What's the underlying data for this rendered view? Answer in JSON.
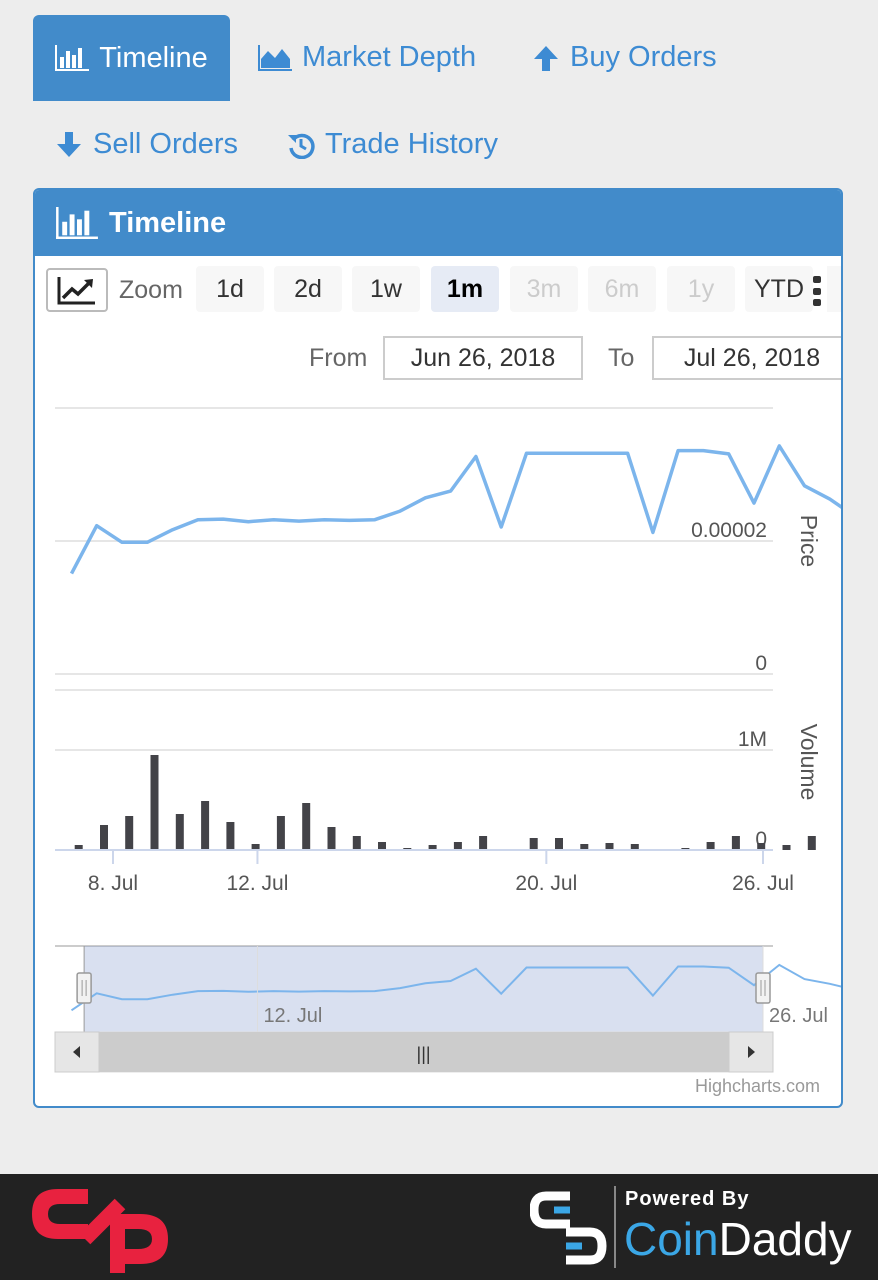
{
  "tabs": [
    {
      "label": "Timeline",
      "icon": "bar-chart-icon",
      "active": true
    },
    {
      "label": "Market Depth",
      "icon": "area-chart-icon",
      "active": false
    },
    {
      "label": "Buy Orders",
      "icon": "arrow-up-icon",
      "active": false
    },
    {
      "label": "Sell Orders",
      "icon": "arrow-down-icon",
      "active": false
    },
    {
      "label": "Trade History",
      "icon": "history-icon",
      "active": false
    }
  ],
  "panel": {
    "title": "Timeline"
  },
  "range_selector": {
    "zoom_label": "Zoom",
    "buttons": [
      {
        "label": "1d",
        "state": "normal"
      },
      {
        "label": "2d",
        "state": "normal"
      },
      {
        "label": "1w",
        "state": "normal"
      },
      {
        "label": "1m",
        "state": "selected"
      },
      {
        "label": "3m",
        "state": "disabled"
      },
      {
        "label": "6m",
        "state": "disabled"
      },
      {
        "label": "1y",
        "state": "disabled"
      },
      {
        "label": "YTD",
        "state": "normal"
      }
    ],
    "from_label": "From",
    "from_value": "Jun 26, 2018",
    "to_label": "To",
    "to_value": "Jul 26, 2018"
  },
  "chart_data": {
    "type": "line",
    "x_ticks": [
      {
        "label": "8. Jul",
        "day": 8
      },
      {
        "label": "12. Jul",
        "day": 12
      },
      {
        "label": "20. Jul",
        "day": 20
      },
      {
        "label": "26. Jul",
        "day": 26
      }
    ],
    "price": {
      "axis_title": "Price",
      "ticks": [
        {
          "label": "0",
          "value": 0
        },
        {
          "label": "0.00002",
          "value": 2e-05
        }
      ],
      "ylim": [
        0,
        4e-05
      ],
      "points": [
        [
          6.85,
          1.51e-05
        ],
        [
          7.55,
          2.23e-05
        ],
        [
          8.25,
          1.98e-05
        ],
        [
          8.95,
          1.98e-05
        ],
        [
          9.65,
          2.17e-05
        ],
        [
          10.35,
          2.32e-05
        ],
        [
          11.05,
          2.33e-05
        ],
        [
          11.75,
          2.29e-05
        ],
        [
          12.45,
          2.32e-05
        ],
        [
          13.15,
          2.3e-05
        ],
        [
          13.85,
          2.32e-05
        ],
        [
          14.55,
          2.31e-05
        ],
        [
          15.25,
          2.32e-05
        ],
        [
          15.95,
          2.45e-05
        ],
        [
          16.65,
          2.65e-05
        ],
        [
          17.35,
          2.75e-05
        ],
        [
          18.05,
          3.27e-05
        ],
        [
          18.75,
          2.21e-05
        ],
        [
          19.45,
          3.32e-05
        ],
        [
          20.15,
          3.32e-05
        ],
        [
          20.85,
          3.32e-05
        ],
        [
          21.55,
          3.32e-05
        ],
        [
          22.25,
          3.32e-05
        ],
        [
          22.95,
          2.13e-05
        ],
        [
          23.65,
          3.36e-05
        ],
        [
          24.35,
          3.36e-05
        ],
        [
          25.05,
          3.31e-05
        ],
        [
          25.75,
          2.57e-05
        ],
        [
          26.45,
          3.43e-05
        ],
        [
          27.15,
          2.83e-05
        ],
        [
          27.85,
          2.63e-05
        ],
        [
          28.55,
          2.37e-05
        ],
        [
          29.25,
          3.29e-05
        ],
        [
          29.95,
          2.23e-05
        ],
        [
          30.65,
          2.41e-05
        ]
      ]
    },
    "volume": {
      "axis_title": "Volume",
      "ticks": [
        {
          "label": "0",
          "value": 0
        },
        {
          "label": "1M",
          "value": 1000000
        }
      ],
      "ylim": [
        0,
        1600000
      ],
      "bars": [
        [
          7.05,
          50000
        ],
        [
          7.75,
          250000
        ],
        [
          8.45,
          340000
        ],
        [
          9.15,
          950000
        ],
        [
          9.85,
          360000
        ],
        [
          10.55,
          490000
        ],
        [
          11.25,
          280000
        ],
        [
          11.95,
          60000
        ],
        [
          12.65,
          340000
        ],
        [
          13.35,
          470000
        ],
        [
          14.05,
          230000
        ],
        [
          14.75,
          140000
        ],
        [
          15.45,
          80000
        ],
        [
          16.15,
          20000
        ],
        [
          16.85,
          50000
        ],
        [
          17.55,
          80000
        ],
        [
          18.25,
          140000
        ],
        [
          18.95,
          10000
        ],
        [
          19.65,
          120000
        ],
        [
          20.35,
          120000
        ],
        [
          21.05,
          60000
        ],
        [
          21.75,
          70000
        ],
        [
          22.45,
          60000
        ],
        [
          23.15,
          10000
        ],
        [
          23.85,
          20000
        ],
        [
          24.55,
          80000
        ],
        [
          25.25,
          140000
        ],
        [
          25.95,
          70000
        ],
        [
          26.65,
          50000
        ],
        [
          27.35,
          140000
        ]
      ]
    }
  },
  "navigator": {
    "ticks": [
      {
        "label": "12. Jul",
        "day": 12
      },
      {
        "label": "26. Jul",
        "day": 26
      }
    ],
    "selected_from_day": 7.2,
    "selected_to_day": 26.0,
    "scrollbar_grip": "|||"
  },
  "credits": "Highcharts.com",
  "footer": {
    "powered_by": "Powered By",
    "brand_coin": "Coin",
    "brand_daddy": "Daddy",
    "colors": {
      "logo_red": "#e8223f",
      "coin_blue": "#3ba7e6"
    }
  }
}
